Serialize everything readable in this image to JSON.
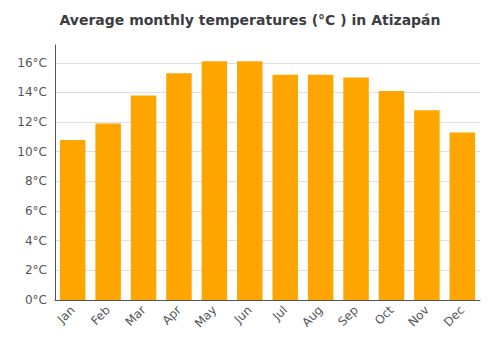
{
  "chart_data": {
    "type": "bar",
    "title": "Average monthly temperatures (°C ) in Atizapán",
    "categories": [
      "Jan",
      "Feb",
      "Mar",
      "Apr",
      "May",
      "Jun",
      "Jul",
      "Aug",
      "Sep",
      "Oct",
      "Nov",
      "Dec"
    ],
    "values": [
      10.8,
      11.9,
      13.8,
      15.3,
      16.1,
      16.1,
      15.2,
      15.2,
      15.0,
      14.1,
      12.8,
      11.3
    ],
    "color": "#FFA500",
    "ylim": [
      0,
      17.2
    ],
    "yticks": [
      {
        "value": 0,
        "label": "0°C"
      },
      {
        "value": 2,
        "label": "2°C"
      },
      {
        "value": 4,
        "label": "4°C"
      },
      {
        "value": 6,
        "label": "6°C"
      },
      {
        "value": 8,
        "label": "8°C"
      },
      {
        "value": 10,
        "label": "10°C"
      },
      {
        "value": 12,
        "label": "12°C"
      },
      {
        "value": 14,
        "label": "14°C"
      },
      {
        "value": 16,
        "label": "16°C"
      }
    ],
    "grid": true
  }
}
